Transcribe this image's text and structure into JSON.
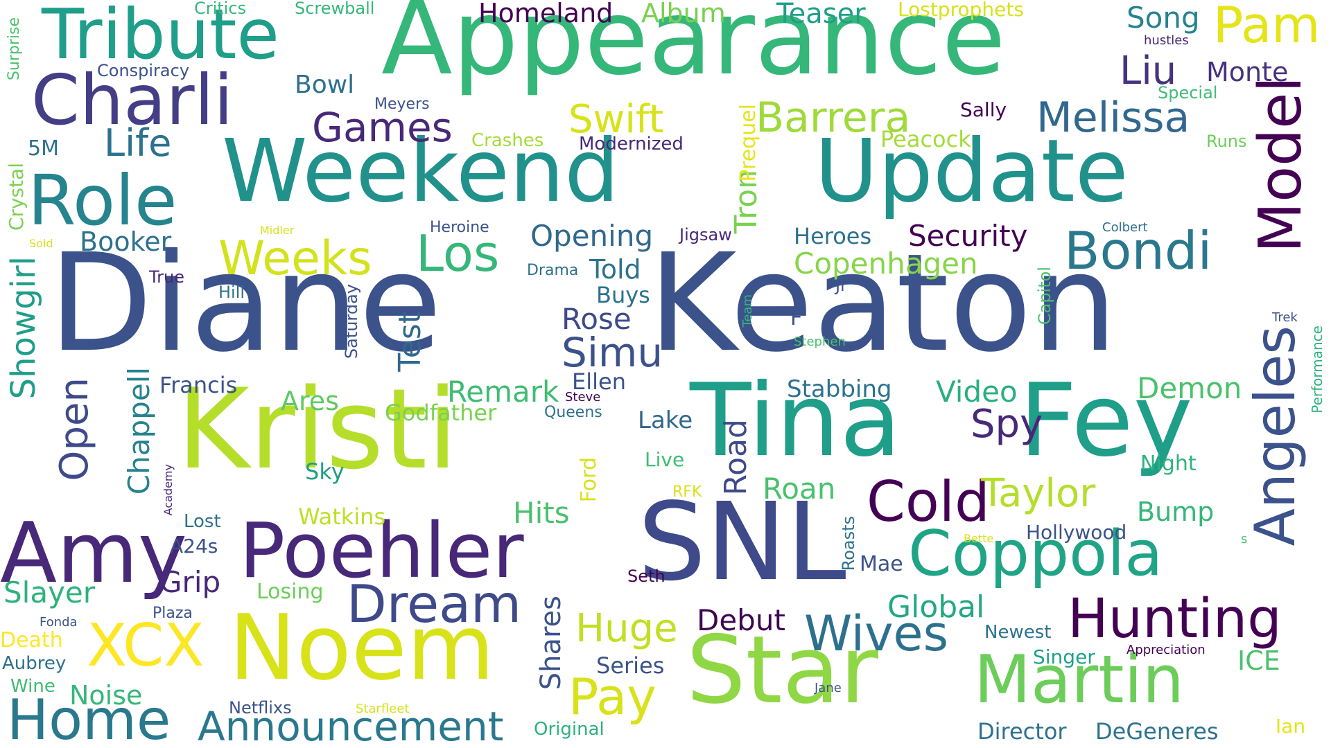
{
  "word_cloud": {
    "words": [
      {
        "text": "Diane",
        "color": "#3b528b"
      },
      {
        "text": "Keaton",
        "color": "#3b528b"
      },
      {
        "text": "Kristi",
        "color": "#b5de2b"
      },
      {
        "text": "Weekend",
        "color": "#21918c"
      },
      {
        "text": "Update",
        "color": "#21918c"
      },
      {
        "text": "Appearance",
        "color": "#35b779"
      },
      {
        "text": "Tina",
        "color": "#1f9e89"
      },
      {
        "text": "Fey",
        "color": "#1f9e89"
      },
      {
        "text": "SNL",
        "color": "#3e4a89"
      },
      {
        "text": "Noem",
        "color": "#d8e219"
      },
      {
        "text": "Star",
        "color": "#8fd744"
      },
      {
        "text": "Amy",
        "color": "#482878"
      },
      {
        "text": "Poehler",
        "color": "#482878"
      },
      {
        "text": "Charli",
        "color": "#433e85"
      },
      {
        "text": "Tribute",
        "color": "#1f9e89"
      },
      {
        "text": "Role",
        "color": "#25848e"
      },
      {
        "text": "Coppola",
        "color": "#20a486"
      },
      {
        "text": "Martin",
        "color": "#6ccd5a"
      },
      {
        "text": "Cold",
        "color": "#440154"
      },
      {
        "text": "Model",
        "color": "#440154"
      },
      {
        "text": "Angeles",
        "color": "#3b528b"
      },
      {
        "text": "XCX",
        "color": "#fde725"
      },
      {
        "text": "Home",
        "color": "#2a788e"
      },
      {
        "text": "Dream",
        "color": "#3e4a89"
      },
      {
        "text": "Hunting",
        "color": "#440154"
      },
      {
        "text": "Wives",
        "color": "#2d708e"
      },
      {
        "text": "Announcement",
        "color": "#2a788e"
      },
      {
        "text": "Bondi",
        "color": "#2a788e"
      },
      {
        "text": "Melissa",
        "color": "#31688e"
      },
      {
        "text": "Weeks",
        "color": "#d2e21b"
      },
      {
        "text": "Los",
        "color": "#35b779"
      },
      {
        "text": "Pam",
        "color": "#e5e419"
      },
      {
        "text": "Barrera",
        "color": "#9fda3a"
      },
      {
        "text": "Swift",
        "color": "#d8e219"
      },
      {
        "text": "Games",
        "color": "#482878"
      },
      {
        "text": "Taylor",
        "color": "#b5de2b"
      },
      {
        "text": "Spy",
        "color": "#482878"
      },
      {
        "text": "Simu",
        "color": "#3b528b"
      },
      {
        "text": "Pay",
        "color": "#d8e219"
      },
      {
        "text": "Huge",
        "color": "#c2df23"
      },
      {
        "text": "Open",
        "color": "#3e4a89"
      },
      {
        "text": "Showgirl",
        "color": "#1f9e89"
      },
      {
        "text": "Liu",
        "color": "#46327e"
      },
      {
        "text": "Life",
        "color": "#2c728e"
      },
      {
        "text": "Security",
        "color": "#440154"
      },
      {
        "text": "Copenhagen",
        "color": "#86d549"
      },
      {
        "text": "Opening",
        "color": "#31688e"
      },
      {
        "text": "Test",
        "color": "#31688e"
      },
      {
        "text": "Chappell",
        "color": "#26828e"
      },
      {
        "text": "Monte",
        "color": "#46327e"
      },
      {
        "text": "Global",
        "color": "#22a884"
      },
      {
        "text": "Remark",
        "color": "#3fbc73"
      },
      {
        "text": "Video",
        "color": "#29af7f"
      },
      {
        "text": "Demon",
        "color": "#4ac16d"
      },
      {
        "text": "Road",
        "color": "#3e4a89"
      },
      {
        "text": "Tron",
        "color": "#7ad151"
      },
      {
        "text": "Slayer",
        "color": "#2db27d"
      },
      {
        "text": "Rose",
        "color": "#3e4a89"
      },
      {
        "text": "Hits",
        "color": "#4ac16d"
      },
      {
        "text": "Bump",
        "color": "#35b779"
      },
      {
        "text": "Roan",
        "color": "#4ac16d"
      },
      {
        "text": "Grip",
        "color": "#482878"
      },
      {
        "text": "Debut",
        "color": "#3e0751"
      },
      {
        "text": "Shares",
        "color": "#3b528b"
      },
      {
        "text": "Song",
        "color": "#26828e"
      },
      {
        "text": "Booker",
        "color": "#2c728e"
      },
      {
        "text": "Teaser",
        "color": "#1f9e89"
      },
      {
        "text": "Album",
        "color": "#7ad151"
      },
      {
        "text": "Homeland",
        "color": "#440154"
      },
      {
        "text": "Noise",
        "color": "#35b779"
      },
      {
        "text": "Stabbing",
        "color": "#2c728e"
      },
      {
        "text": "ICE",
        "color": "#4ac16d"
      },
      {
        "text": "Told",
        "color": "#2c728e"
      },
      {
        "text": "Ares",
        "color": "#5ec962"
      },
      {
        "text": "Godfather",
        "color": "#7ad151"
      },
      {
        "text": "Peacock",
        "color": "#a5db36"
      },
      {
        "text": "Francis",
        "color": "#3b528b"
      },
      {
        "text": "Heroes",
        "color": "#2d708e"
      },
      {
        "text": "Series",
        "color": "#3b528b"
      },
      {
        "text": "Director",
        "color": "#2d708e"
      },
      {
        "text": "DeGeneres",
        "color": "#2c728e"
      },
      {
        "text": "Lake",
        "color": "#31688e"
      },
      {
        "text": "Ellen",
        "color": "#3b528b"
      },
      {
        "text": "Bowl",
        "color": "#2d708e"
      },
      {
        "text": "Buys",
        "color": "#2c728e"
      },
      {
        "text": "Sky",
        "color": "#1f9e89"
      },
      {
        "text": "Live",
        "color": "#3fbc73"
      },
      {
        "text": "Night",
        "color": "#2db27d"
      },
      {
        "text": "Watkins",
        "color": "#bddf26"
      },
      {
        "text": "Hollywood",
        "color": "#3b528b"
      },
      {
        "text": "Singer",
        "color": "#1fa188"
      },
      {
        "text": "Newest",
        "color": "#2c728e"
      },
      {
        "text": "Losing",
        "color": "#6ccd5a"
      },
      {
        "text": "Death",
        "color": "#fde725"
      },
      {
        "text": "A24s",
        "color": "#3b528b"
      },
      {
        "text": "Lost",
        "color": "#2c728e"
      },
      {
        "text": "Mae",
        "color": "#3b528b"
      },
      {
        "text": "Ford",
        "color": "#d8e219"
      },
      {
        "text": "Original",
        "color": "#2db27d"
      },
      {
        "text": "Netflixs",
        "color": "#3b528b"
      },
      {
        "text": "Ian",
        "color": "#e5e419"
      },
      {
        "text": "Prequel",
        "color": "#e5e419"
      },
      {
        "text": "Sally",
        "color": "#440154"
      },
      {
        "text": "Crashes",
        "color": "#a5db36"
      },
      {
        "text": "Modernized",
        "color": "#482878"
      },
      {
        "text": "5M",
        "color": "#2d708e"
      },
      {
        "text": "Crystal",
        "color": "#7ad151"
      },
      {
        "text": "Surprise",
        "color": "#4ac16d"
      },
      {
        "text": "Critics",
        "color": "#35b779"
      },
      {
        "text": "Screwball",
        "color": "#35b779"
      },
      {
        "text": "Lostprophets",
        "color": "#d8e219"
      },
      {
        "text": "Conspiracy",
        "color": "#3b528b"
      },
      {
        "text": "Meyers",
        "color": "#3b528b"
      },
      {
        "text": "Special",
        "color": "#3fbc73"
      },
      {
        "text": "hustles",
        "color": "#482878"
      },
      {
        "text": "Runs",
        "color": "#6ccd5a"
      },
      {
        "text": "Heroine",
        "color": "#3b528b"
      },
      {
        "text": "Jigsaw",
        "color": "#482878"
      },
      {
        "text": "Colbert",
        "color": "#2d708e"
      },
      {
        "text": "Midler",
        "color": "#d8e219"
      },
      {
        "text": "Sold",
        "color": "#d8e219"
      },
      {
        "text": "True",
        "color": "#482878"
      },
      {
        "text": "Hill",
        "color": "#2c728e"
      },
      {
        "text": "Drama",
        "color": "#2d708e"
      },
      {
        "text": "Jr",
        "color": "#3b528b"
      },
      {
        "text": "Saturday",
        "color": "#3b528b"
      },
      {
        "text": "Team",
        "color": "#35b779"
      },
      {
        "text": "Stephen",
        "color": "#4ac16d"
      },
      {
        "text": "Capitol",
        "color": "#4ac16d"
      },
      {
        "text": "Trek",
        "color": "#3b528b"
      },
      {
        "text": "F",
        "color": "#3b528b"
      },
      {
        "text": "Performance",
        "color": "#2db27d"
      },
      {
        "text": "Steve",
        "color": "#440154"
      },
      {
        "text": "Queens",
        "color": "#2d708e"
      },
      {
        "text": "Academy",
        "color": "#482878"
      },
      {
        "text": "RFK",
        "color": "#d8e219"
      },
      {
        "text": "Bette",
        "color": "#d8e219"
      },
      {
        "text": "s",
        "color": "#4ac16d"
      },
      {
        "text": "Roasts",
        "color": "#2c728e"
      },
      {
        "text": "Seth",
        "color": "#440154"
      },
      {
        "text": "Plaza",
        "color": "#3b528b"
      },
      {
        "text": "Fonda",
        "color": "#3b528b"
      },
      {
        "text": "Aubrey",
        "color": "#2d708e"
      },
      {
        "text": "Wine",
        "color": "#3fbc73"
      },
      {
        "text": "Starfleet",
        "color": "#d8e219"
      },
      {
        "text": "Jane",
        "color": "#3b528b"
      },
      {
        "text": "Appreciation",
        "color": "#440154"
      }
    ]
  }
}
